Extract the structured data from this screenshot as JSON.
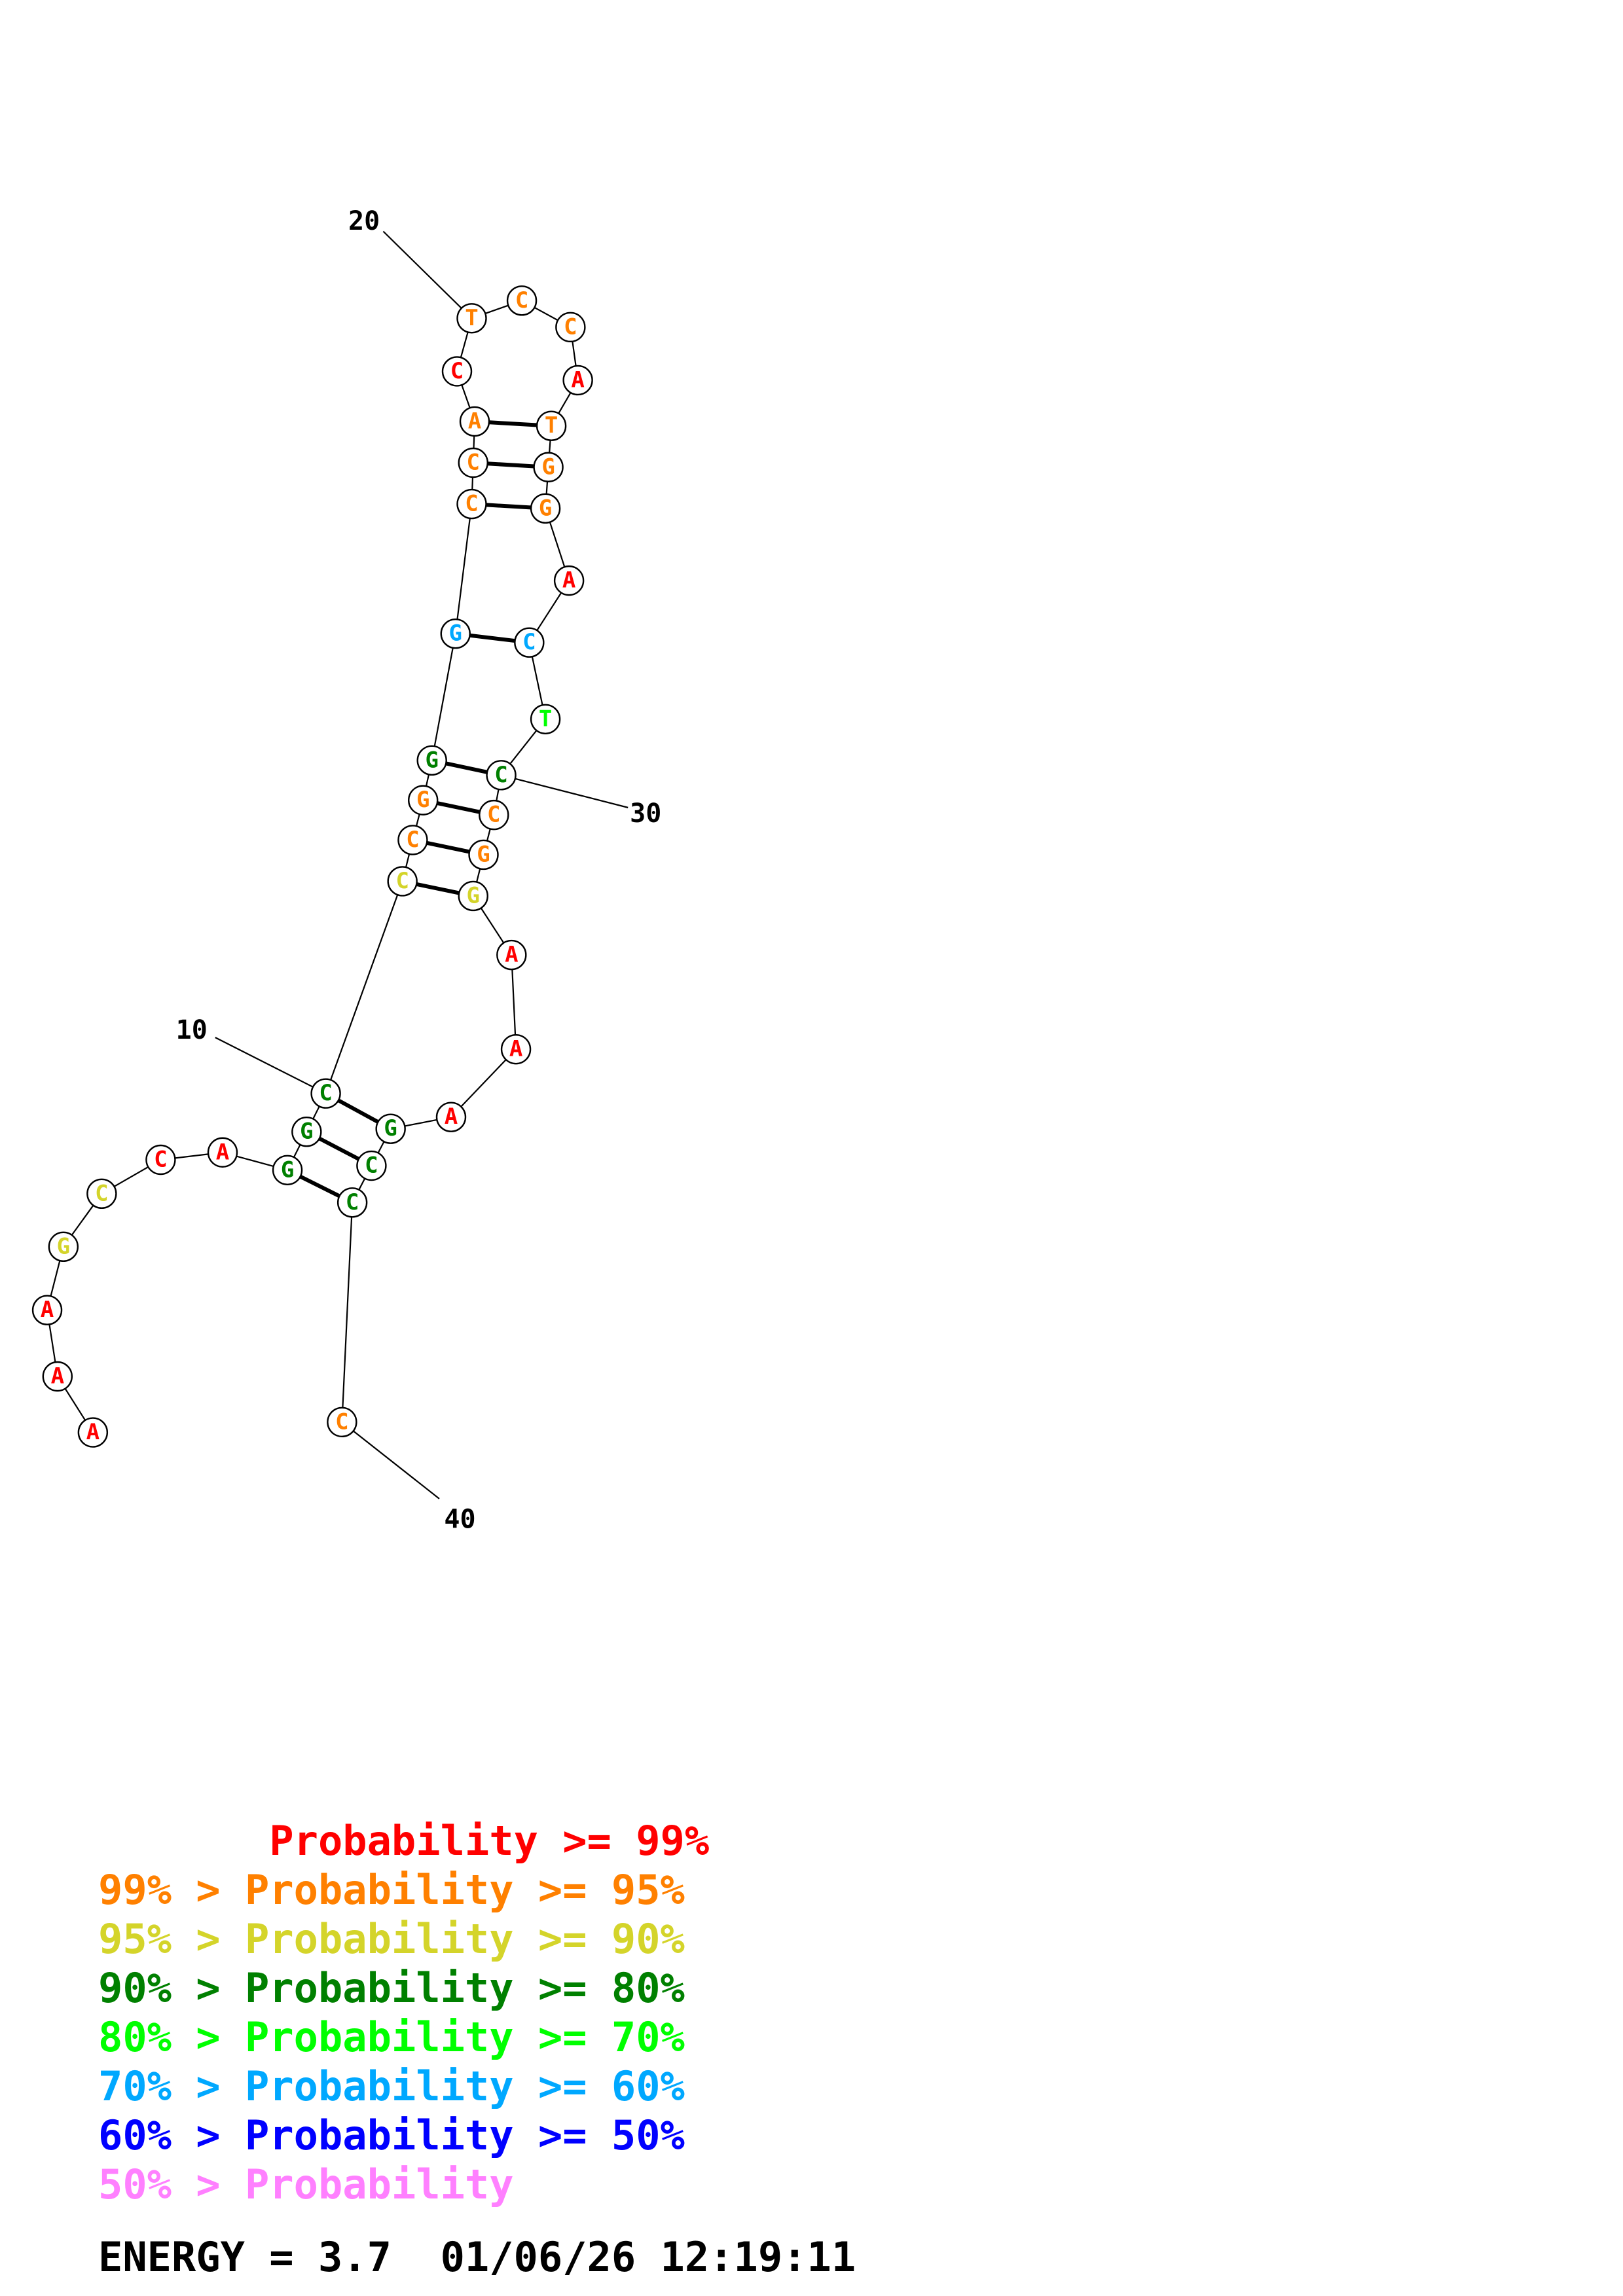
{
  "colors": {
    "p99": "#ff0000",
    "p95": "#ff8000",
    "p90": "#d4d42a",
    "p80": "#008000",
    "p70": "#00ff00",
    "p60": "#00a8ff",
    "p50": "#0000ff",
    "plow": "#ff80ff"
  },
  "structure": {
    "nucleotides": [
      {
        "index": 1,
        "base": "A",
        "prob": "p99"
      },
      {
        "index": 2,
        "base": "A",
        "prob": "p99"
      },
      {
        "index": 3,
        "base": "A",
        "prob": "p99"
      },
      {
        "index": 4,
        "base": "G",
        "prob": "p90"
      },
      {
        "index": 5,
        "base": "C",
        "prob": "p90"
      },
      {
        "index": 6,
        "base": "C",
        "prob": "p99"
      },
      {
        "index": 7,
        "base": "A",
        "prob": "p99"
      },
      {
        "index": 8,
        "base": "G",
        "prob": "p80"
      },
      {
        "index": 9,
        "base": "G",
        "prob": "p80"
      },
      {
        "index": 10,
        "base": "C",
        "prob": "p80"
      },
      {
        "index": 11,
        "base": "C",
        "prob": "p90"
      },
      {
        "index": 12,
        "base": "C",
        "prob": "p95"
      },
      {
        "index": 13,
        "base": "G",
        "prob": "p95"
      },
      {
        "index": 14,
        "base": "G",
        "prob": "p80"
      },
      {
        "index": 15,
        "base": "G",
        "prob": "p60"
      },
      {
        "index": 16,
        "base": "C",
        "prob": "p95"
      },
      {
        "index": 17,
        "base": "C",
        "prob": "p95"
      },
      {
        "index": 18,
        "base": "A",
        "prob": "p95"
      },
      {
        "index": 19,
        "base": "C",
        "prob": "p99"
      },
      {
        "index": 20,
        "base": "T",
        "prob": "p95"
      },
      {
        "index": 21,
        "base": "C",
        "prob": "p95"
      },
      {
        "index": 22,
        "base": "C",
        "prob": "p95"
      },
      {
        "index": 23,
        "base": "A",
        "prob": "p99"
      },
      {
        "index": 24,
        "base": "T",
        "prob": "p95"
      },
      {
        "index": 25,
        "base": "G",
        "prob": "p95"
      },
      {
        "index": 26,
        "base": "G",
        "prob": "p95"
      },
      {
        "index": 27,
        "base": "A",
        "prob": "p99"
      },
      {
        "index": 28,
        "base": "C",
        "prob": "p60"
      },
      {
        "index": 29,
        "base": "T",
        "prob": "p70"
      },
      {
        "index": 30,
        "base": "C",
        "prob": "p80"
      },
      {
        "index": 31,
        "base": "C",
        "prob": "p95"
      },
      {
        "index": 32,
        "base": "G",
        "prob": "p95"
      },
      {
        "index": 33,
        "base": "G",
        "prob": "p90"
      },
      {
        "index": 34,
        "base": "A",
        "prob": "p99"
      },
      {
        "index": 35,
        "base": "A",
        "prob": "p99"
      },
      {
        "index": 36,
        "base": "A",
        "prob": "p99"
      },
      {
        "index": 37,
        "base": "G",
        "prob": "p80"
      },
      {
        "index": 38,
        "base": "C",
        "prob": "p80"
      },
      {
        "index": 39,
        "base": "C",
        "prob": "p80"
      },
      {
        "index": 40,
        "base": "C",
        "prob": "p95"
      }
    ],
    "pairs": [
      [
        8,
        39
      ],
      [
        9,
        38
      ],
      [
        10,
        37
      ],
      [
        11,
        33
      ],
      [
        12,
        32
      ],
      [
        13,
        31
      ],
      [
        14,
        30
      ],
      [
        15,
        28
      ],
      [
        16,
        26
      ],
      [
        17,
        25
      ],
      [
        18,
        24
      ]
    ],
    "number_labels": [
      "10",
      "20",
      "30",
      "40"
    ]
  },
  "legend": [
    {
      "prefix": "       ",
      "text": "Probability >= 99%",
      "color_key": "p99"
    },
    {
      "prefix": "99% > ",
      "text": "Probability >= 95%",
      "color_key": "p95"
    },
    {
      "prefix": "95% > ",
      "text": "Probability >= 90%",
      "color_key": "p90"
    },
    {
      "prefix": "90% > ",
      "text": "Probability >= 80%",
      "color_key": "p80"
    },
    {
      "prefix": "80% > ",
      "text": "Probability >= 70%",
      "color_key": "p70"
    },
    {
      "prefix": "70% > ",
      "text": "Probability >= 60%",
      "color_key": "p60"
    },
    {
      "prefix": "60% > ",
      "text": "Probability >= 50%",
      "color_key": "p50"
    },
    {
      "prefix": "50% > ",
      "text": "Probability",
      "color_key": "plow"
    }
  ],
  "energy": {
    "label": "ENERGY = 3.7  01/06/26 12:19:11"
  }
}
